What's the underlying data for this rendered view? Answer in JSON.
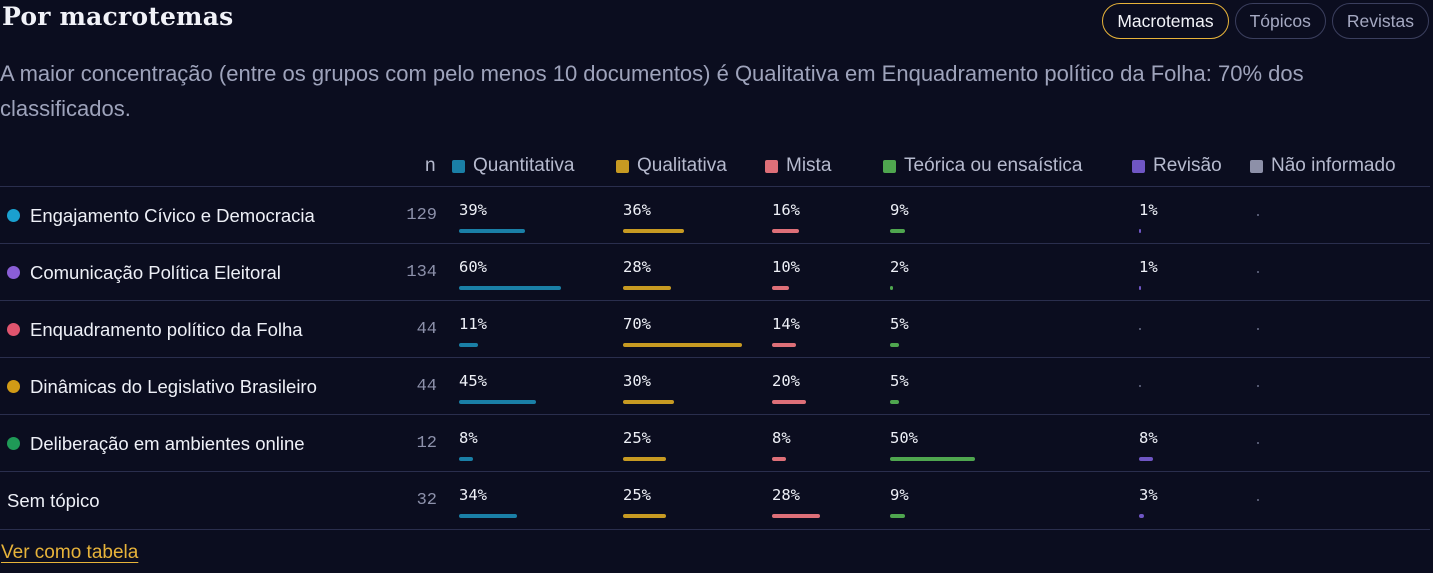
{
  "title": "Por macrotemas",
  "tabs": [
    {
      "label": "Macrotemas",
      "active": true
    },
    {
      "label": "Tópicos",
      "active": false
    },
    {
      "label": "Revistas",
      "active": false
    }
  ],
  "summary": "A maior concentração (entre os grupos com pelo menos 10 documentos) é Qualitativa em Enquadramento político da Folha: 70% dos classificados.",
  "n_label": "n",
  "categories": [
    {
      "label": "Quantitativa",
      "color": "#1a7fa6"
    },
    {
      "label": "Qualitativa",
      "color": "#c79a22"
    },
    {
      "label": "Mista",
      "color": "#de6f78"
    },
    {
      "label": "Teórica ou ensaística",
      "color": "#4fa64f"
    },
    {
      "label": "Revisão",
      "color": "#6f56c4"
    },
    {
      "label": "Não informado",
      "color": "#8d90a8"
    }
  ],
  "rows": [
    {
      "label": "Engajamento Cívico e Democracia",
      "dot": "#1aa0cf",
      "n": "129",
      "values": [
        "39%",
        "36%",
        "16%",
        "9%",
        "1%",
        ""
      ]
    },
    {
      "label": "Comunicação Política Eleitoral",
      "dot": "#8a5ed6",
      "n": "134",
      "values": [
        "60%",
        "28%",
        "10%",
        "2%",
        "1%",
        ""
      ]
    },
    {
      "label": "Enquadramento político da Folha",
      "dot": "#e0546e",
      "n": "44",
      "values": [
        "11%",
        "70%",
        "14%",
        "5%",
        "",
        ""
      ]
    },
    {
      "label": "Dinâmicas do Legislativo Brasileiro",
      "dot": "#d19a16",
      "n": "44",
      "values": [
        "45%",
        "30%",
        "20%",
        "5%",
        "",
        ""
      ]
    },
    {
      "label": "Deliberação em ambientes online",
      "dot": "#1f9a57",
      "n": "12",
      "values": [
        "8%",
        "25%",
        "8%",
        "50%",
        "8%",
        ""
      ]
    },
    {
      "label": "Sem tópico",
      "dot": "",
      "n": "32",
      "values": [
        "34%",
        "25%",
        "28%",
        "9%",
        "3%",
        ""
      ]
    }
  ],
  "link": "Ver como tabela"
}
